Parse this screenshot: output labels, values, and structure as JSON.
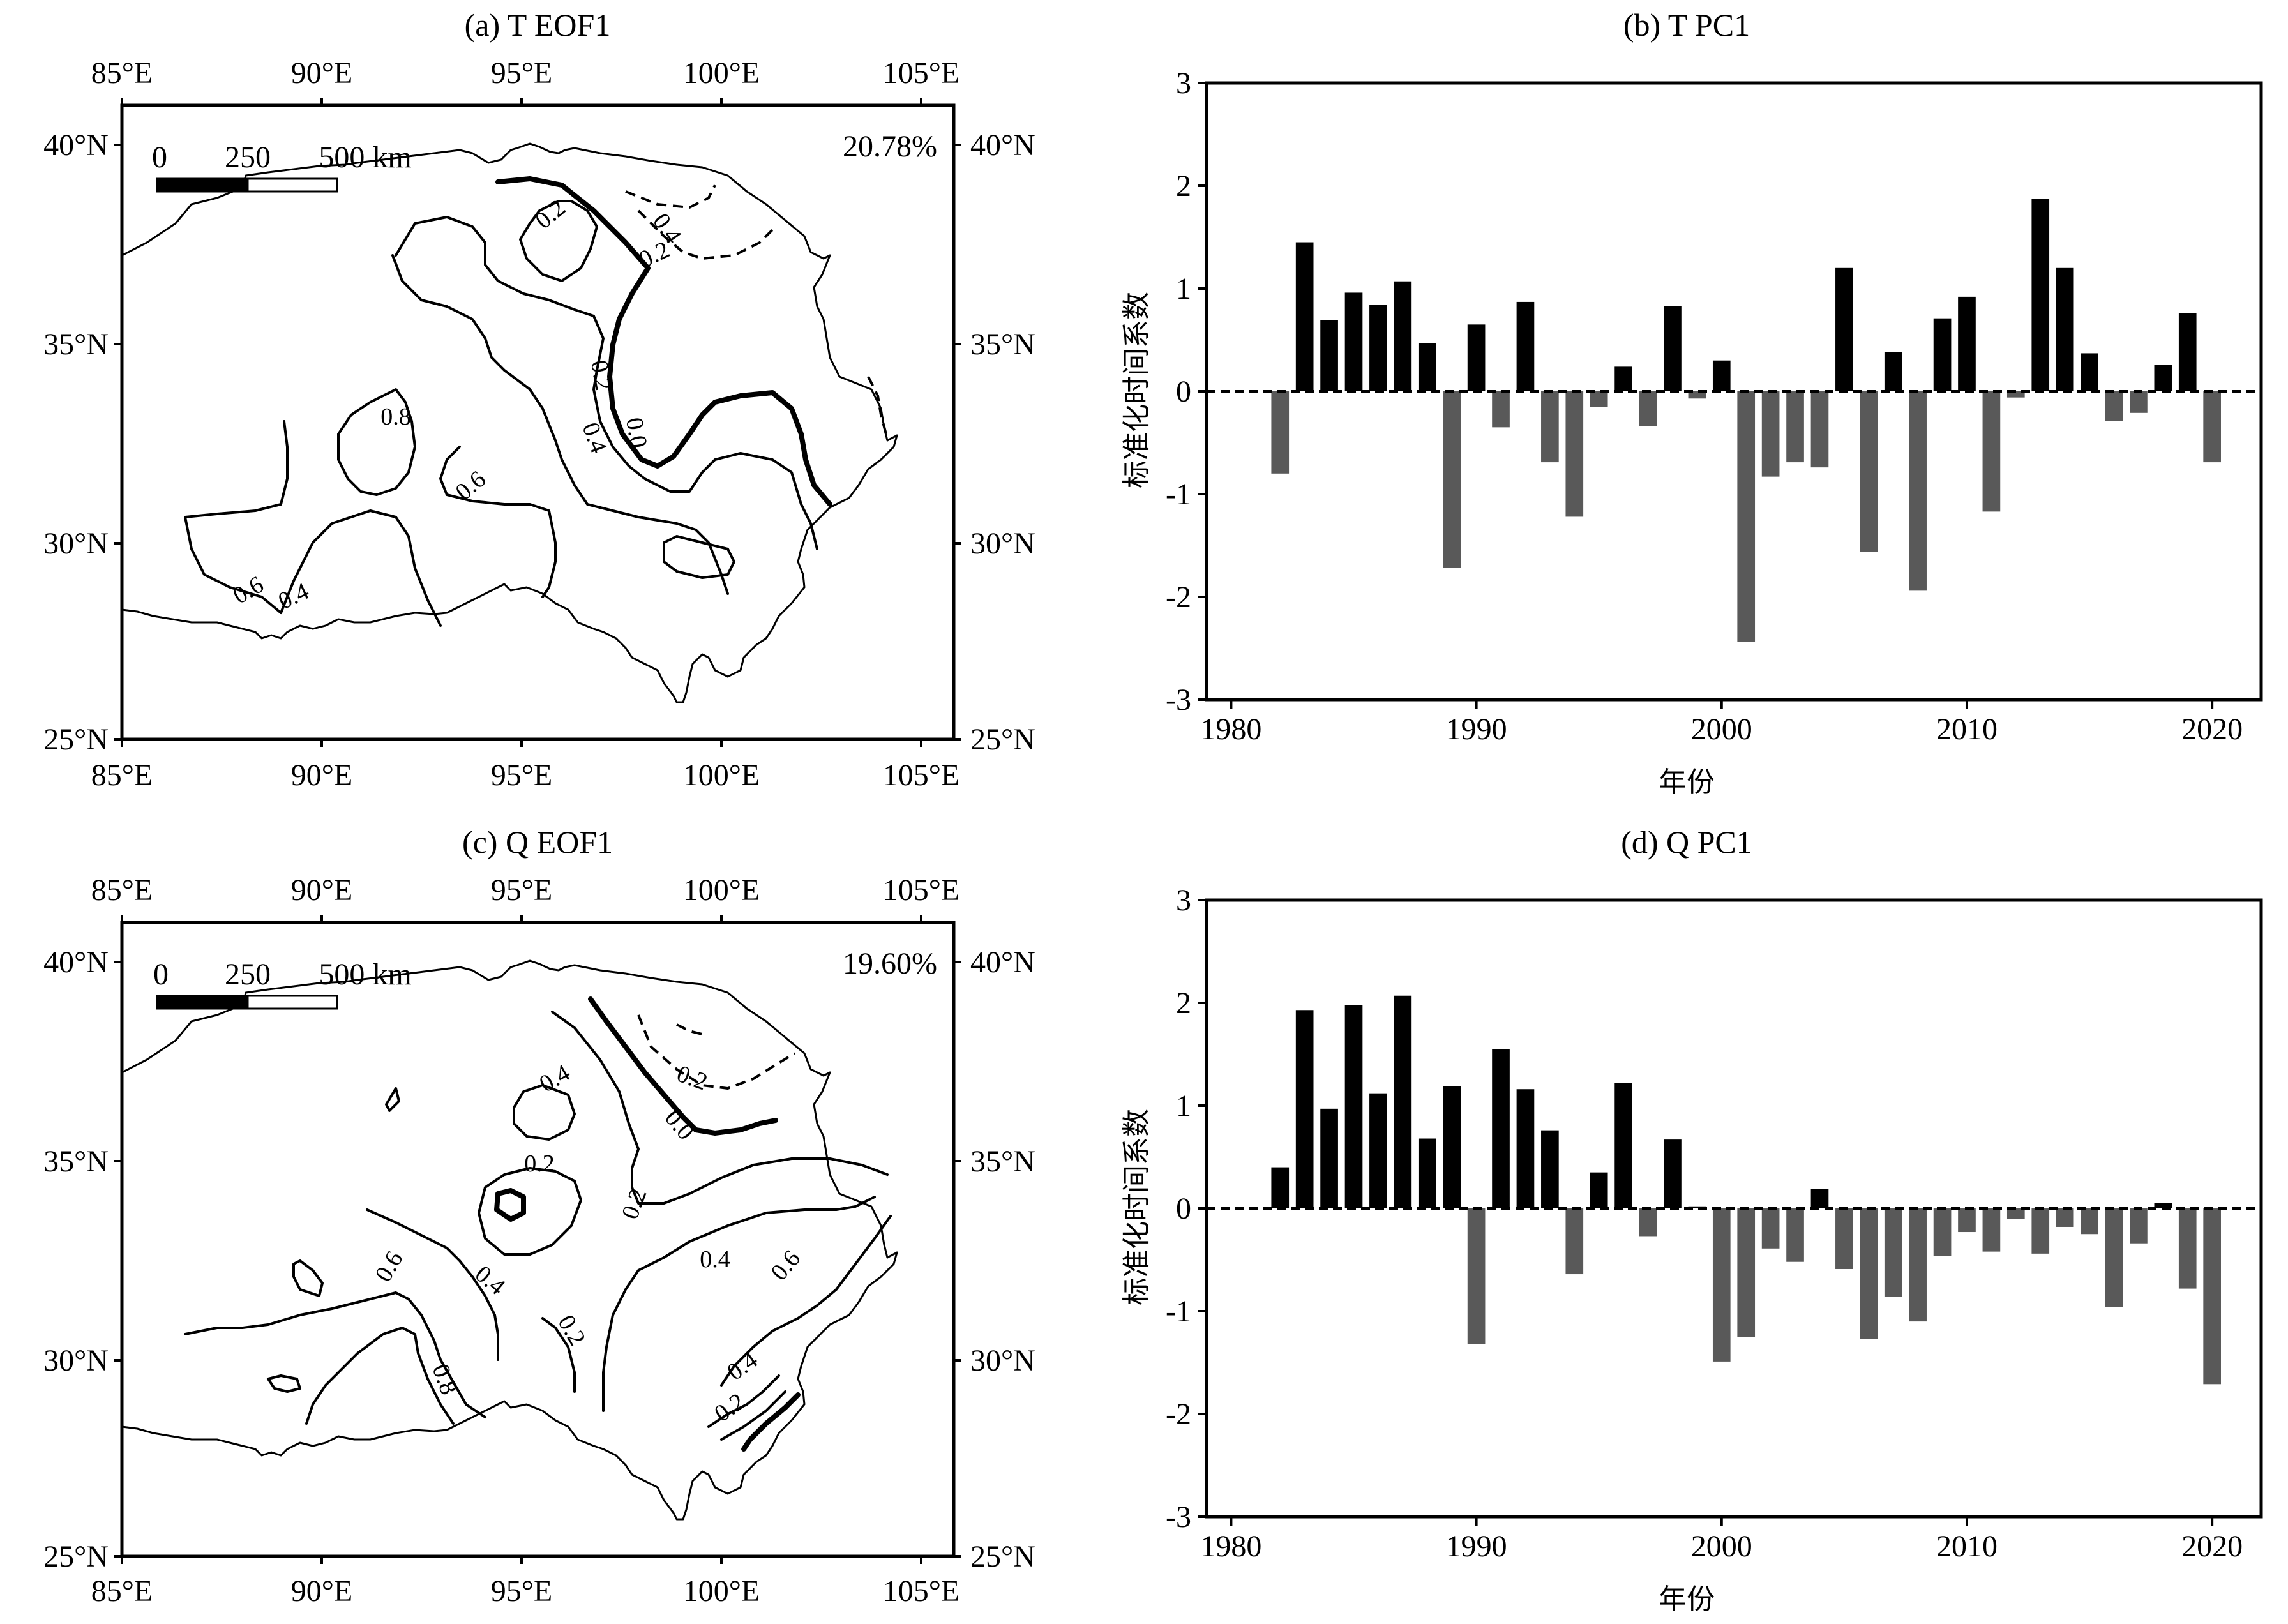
{
  "chart_data": [
    {
      "panel": "a",
      "type": "contour_map",
      "title": "(a) T EOF1",
      "variance_explained": "20.78%",
      "lon_ticks": [
        "85°E",
        "90°E",
        "95°E",
        "100°E",
        "105°E"
      ],
      "lat_ticks": [
        "25°N",
        "30°N",
        "35°N",
        "40°N"
      ],
      "xlim": [
        85,
        106
      ],
      "ylim": [
        25,
        41
      ],
      "scale_bar": {
        "labels": [
          "0",
          "250",
          "500 km"
        ]
      },
      "contour_labels": [
        "0.2",
        "0.4",
        "0.2",
        "0.8",
        "0.2",
        "0.6",
        "0.4",
        "0.0",
        "0.6",
        "0.4"
      ]
    },
    {
      "panel": "b",
      "type": "bar",
      "title": "(b) T PC1",
      "xlabel": "年份",
      "ylabel": "标准化时间系数",
      "xlim": [
        1979,
        2022
      ],
      "ylim": [
        -3,
        3
      ],
      "xticks": [
        1980,
        1990,
        2000,
        2010,
        2020
      ],
      "yticks": [
        -3,
        -2,
        -1,
        0,
        1,
        2,
        3
      ],
      "x": [
        1982,
        1983,
        1984,
        1985,
        1986,
        1987,
        1988,
        1989,
        1990,
        1991,
        1992,
        1993,
        1994,
        1995,
        1996,
        1997,
        1998,
        1999,
        2000,
        2001,
        2002,
        2003,
        2004,
        2005,
        2006,
        2007,
        2008,
        2009,
        2010,
        2011,
        2012,
        2013,
        2014,
        2015,
        2016,
        2017,
        2018,
        2019,
        2020
      ],
      "values": [
        -0.8,
        1.45,
        0.69,
        0.96,
        0.84,
        1.07,
        0.47,
        -1.72,
        0.65,
        -0.35,
        0.87,
        -0.69,
        -1.22,
        -0.15,
        0.24,
        -0.34,
        0.83,
        -0.07,
        0.3,
        -2.44,
        -0.83,
        -0.69,
        -0.74,
        1.2,
        -1.56,
        0.38,
        -1.94,
        0.71,
        0.92,
        -1.17,
        -0.06,
        1.87,
        1.2,
        0.37,
        -0.29,
        -0.21,
        0.26,
        0.76,
        -0.69
      ],
      "positive_color": "#000000",
      "negative_color": "#595959"
    },
    {
      "panel": "c",
      "type": "contour_map",
      "title": "(c) Q EOF1",
      "variance_explained": "19.60%",
      "lon_ticks": [
        "85°E",
        "90°E",
        "95°E",
        "100°E",
        "105°E"
      ],
      "lat_ticks": [
        "25°N",
        "30°N",
        "35°N",
        "40°N"
      ],
      "xlim": [
        85,
        106
      ],
      "ylim": [
        25,
        41
      ],
      "scale_bar": {
        "labels": [
          "0",
          "250",
          "500 km"
        ]
      },
      "contour_labels": [
        "0.4",
        "0.2",
        "0.2",
        "0.0",
        "0.6",
        "0.4",
        "0.4",
        "0.6",
        "0.2",
        "0.8",
        "0.4",
        "0.2"
      ]
    },
    {
      "panel": "d",
      "type": "bar",
      "title": "(d) Q PC1",
      "xlabel": "年份",
      "ylabel": "标准化时间系数",
      "xlim": [
        1979,
        2022
      ],
      "ylim": [
        -3,
        3
      ],
      "xticks": [
        1980,
        1990,
        2000,
        2010,
        2020
      ],
      "yticks": [
        -3,
        -2,
        -1,
        0,
        1,
        2,
        3
      ],
      "x": [
        1982,
        1983,
        1984,
        1985,
        1986,
        1987,
        1988,
        1989,
        1990,
        1991,
        1992,
        1993,
        1994,
        1995,
        1996,
        1997,
        1998,
        1999,
        2000,
        2001,
        2002,
        2003,
        2004,
        2005,
        2006,
        2007,
        2008,
        2009,
        2010,
        2011,
        2012,
        2013,
        2014,
        2015,
        2016,
        2017,
        2018,
        2019,
        2020
      ],
      "values": [
        0.4,
        1.93,
        0.97,
        1.98,
        1.12,
        2.07,
        0.68,
        1.19,
        -1.32,
        1.55,
        1.16,
        0.76,
        -0.64,
        0.35,
        1.22,
        -0.27,
        0.67,
        0.02,
        -1.49,
        -1.25,
        -0.39,
        -0.52,
        0.19,
        -0.59,
        -1.27,
        -0.86,
        -1.1,
        -0.46,
        -0.23,
        -0.42,
        -0.1,
        -0.44,
        -0.18,
        -0.25,
        -0.96,
        -0.34,
        0.05,
        -0.78,
        -1.71
      ],
      "positive_color": "#000000",
      "negative_color": "#595959"
    }
  ]
}
